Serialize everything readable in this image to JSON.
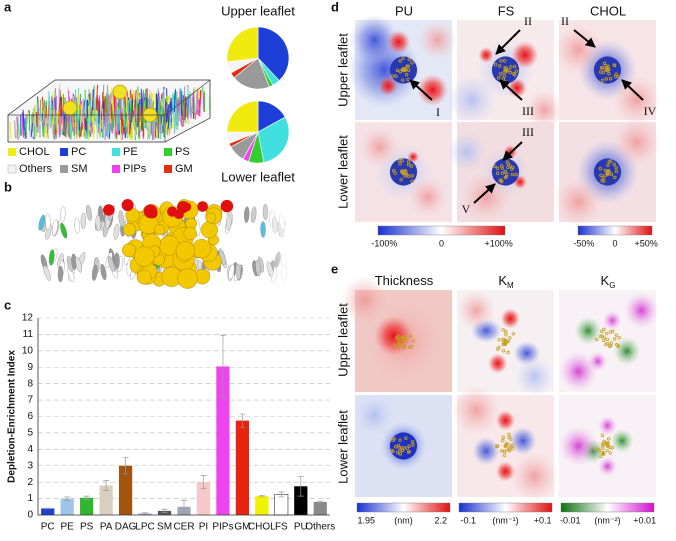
{
  "panel_labels": [
    "a",
    "b",
    "c",
    "d",
    "e"
  ],
  "legend": {
    "names": [
      "CHOL",
      "PC",
      "PE",
      "PS",
      "Others",
      "SM",
      "PIPs",
      "GM"
    ],
    "colors": [
      "#f0ea10",
      "#1e3ed8",
      "#40e0e0",
      "#30d030",
      "#f4f4f4",
      "#9a9a9a",
      "#f040f0",
      "#e03010"
    ]
  },
  "chart_data": [
    {
      "type": "pie",
      "title": "Upper leaflet",
      "values": [
        27,
        38,
        4,
        2,
        6,
        20,
        0,
        3
      ]
    },
    {
      "type": "pie",
      "title": "Lower leaflet",
      "values": [
        25,
        17,
        30,
        8,
        6,
        9,
        3,
        2
      ]
    },
    {
      "type": "bar",
      "y_label": "Depletion-Enrichment Index",
      "categories": [
        "PC",
        "PE",
        "PS",
        "PA",
        "DAG",
        "LPC",
        "SM",
        "CER",
        "PI",
        "PIPs",
        "GM",
        "CHOL",
        "FS",
        "PU",
        "Others"
      ],
      "values": [
        0.4,
        1.0,
        1.05,
        1.8,
        3.0,
        0.1,
        0.25,
        0.5,
        2.0,
        9.05,
        5.75,
        1.15,
        1.25,
        1.75,
        0.8
      ],
      "errors": [
        0.02,
        0.1,
        0.1,
        0.3,
        0.5,
        0.05,
        0.1,
        0.4,
        0.4,
        1.9,
        0.4,
        0.05,
        0.15,
        0.6,
        0.05
      ],
      "colors": [
        "#1f3fd0",
        "#9fc6e8",
        "#2fb52f",
        "#d8cfbf",
        "#a3540e",
        "#a8b0e0",
        "#555555",
        "#a0a8b8",
        "#f6c8c8",
        "#ee44ee",
        "#e82410",
        "#f2f200",
        "#ffffff",
        "#000000",
        "#8a8a8a"
      ],
      "ylim": [
        0,
        12
      ],
      "yticks": [
        0,
        1,
        2,
        3,
        4,
        5,
        6,
        7,
        8,
        9,
        10,
        11,
        12
      ],
      "grid": true
    }
  ],
  "panel_d": {
    "columns": [
      "PU",
      "FS",
      "CHOL"
    ],
    "rows": [
      "Upper leaflet",
      "Lower leaflet"
    ],
    "annotations": [
      "I",
      "II",
      "III",
      "II",
      "IV",
      "III",
      "V"
    ],
    "colorbars": [
      [
        "-100%",
        "0",
        "+100%"
      ],
      [
        "-50%",
        "0",
        "+50%"
      ]
    ]
  },
  "panel_e": {
    "columns": [
      {
        "text": "Thickness"
      },
      {
        "text": "K",
        "sub": "M"
      },
      {
        "text": "K",
        "sub": "G"
      }
    ],
    "rows": [
      "Upper leaflet",
      "Lower leaflet"
    ],
    "colorbars": [
      [
        "1.95",
        "(nm)",
        "2.2"
      ],
      [
        "-0.1",
        "(nm⁻¹)",
        "+0.1"
      ],
      [
        "-0.01",
        "(nm⁻²)",
        "+0.01"
      ]
    ]
  }
}
